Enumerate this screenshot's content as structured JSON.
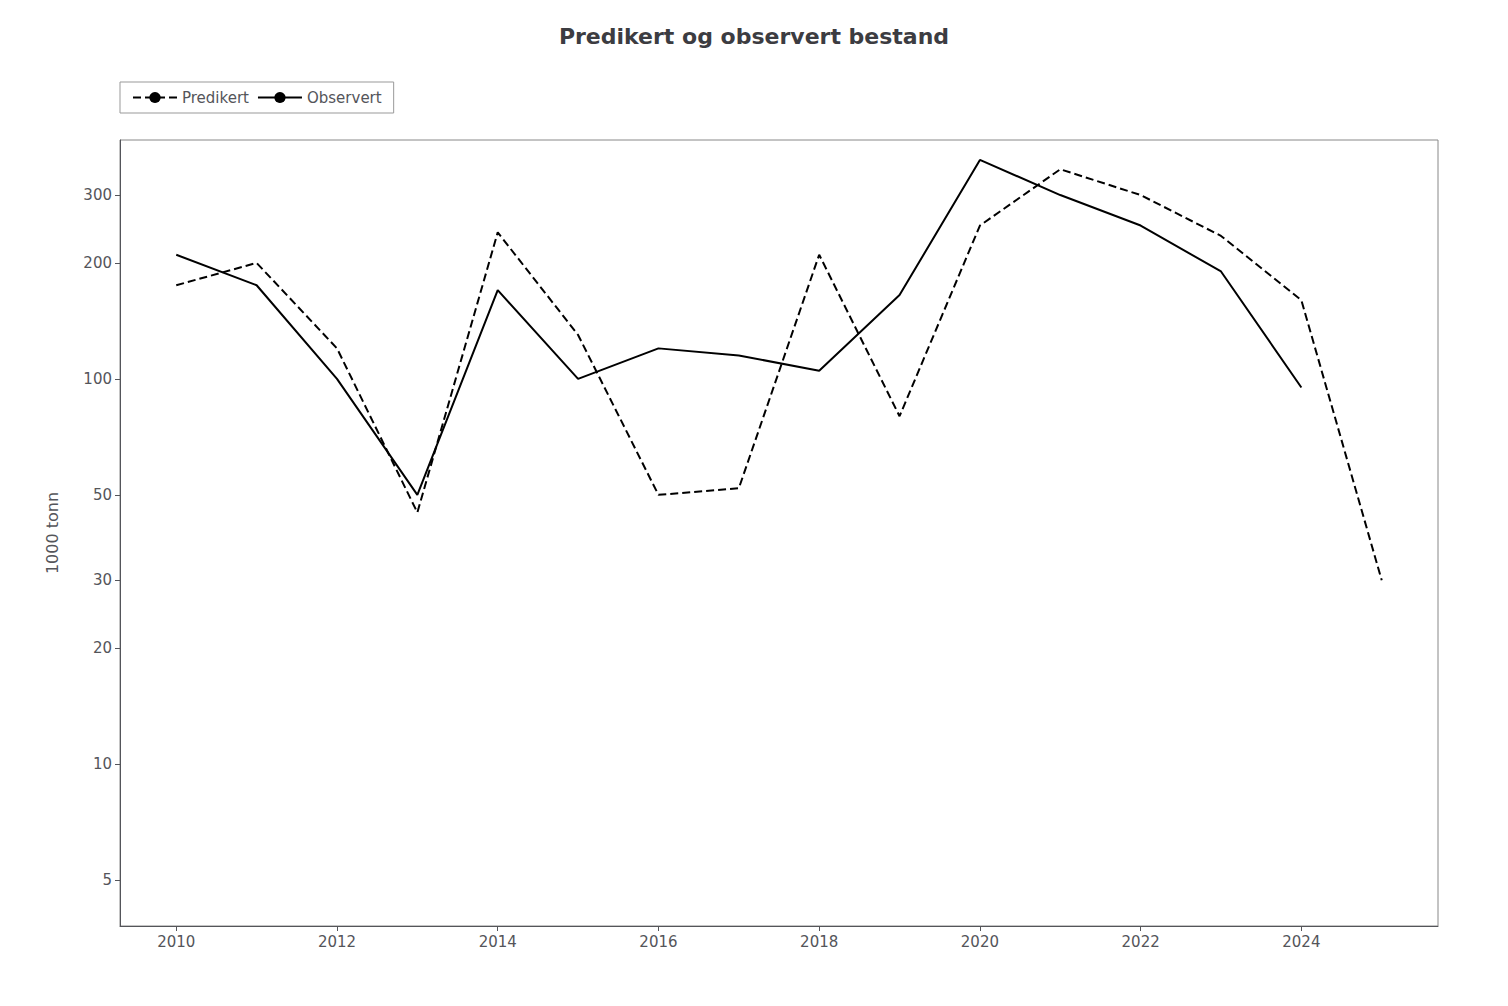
{
  "chart_data": {
    "type": "line",
    "title": "Predikert og observert bestand",
    "ylabel": "1000 tonn",
    "log": "y",
    "grid": false,
    "legend": "upper left",
    "xlim": [
      2009.3,
      2025.7
    ],
    "xticks": [
      2010,
      2012,
      2014,
      2016,
      2018,
      2020,
      2022,
      2024
    ],
    "ylim": [
      3.801893963205612,
      416.8693834703354
    ],
    "yticks": [
      5,
      10,
      20,
      30,
      50,
      100,
      200,
      300
    ],
    "series": [
      {
        "name": "Predikert",
        "color": "#000000",
        "line_style": "dashed",
        "x": [
          2010,
          2011,
          2012,
          2013,
          2014,
          2015,
          2016,
          2017,
          2018,
          2019,
          2020,
          2021,
          2022,
          2023,
          2024,
          2025
        ],
        "values": [
          175,
          200,
          120,
          45,
          240,
          130,
          50,
          52,
          210,
          80,
          250,
          350,
          300,
          235,
          160,
          30
        ]
      },
      {
        "name": "Observert",
        "color": "#000000",
        "line_style": "solid",
        "x": [
          2010,
          2011,
          2012,
          2013,
          2014,
          2015,
          2016,
          2017,
          2018,
          2019,
          2020,
          2021,
          2022,
          2023,
          2024
        ],
        "values": [
          210,
          175,
          100,
          50,
          170,
          100,
          120,
          115,
          105,
          165,
          370,
          300,
          250,
          190,
          95
        ]
      }
    ]
  }
}
